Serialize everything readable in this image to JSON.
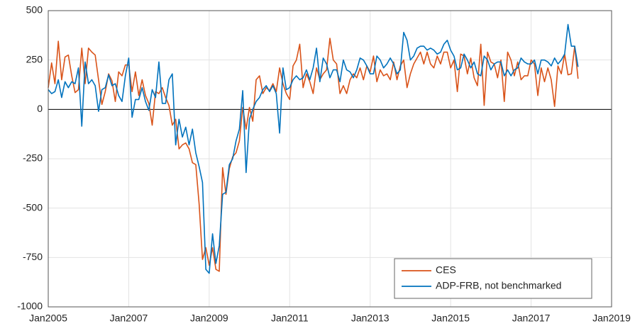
{
  "chart_data": {
    "type": "line",
    "x": [
      "2005-01",
      "2005-02",
      "2005-03",
      "2005-04",
      "2005-05",
      "2005-06",
      "2005-07",
      "2005-08",
      "2005-09",
      "2005-10",
      "2005-11",
      "2005-12",
      "2006-01",
      "2006-02",
      "2006-03",
      "2006-04",
      "2006-05",
      "2006-06",
      "2006-07",
      "2006-08",
      "2006-09",
      "2006-10",
      "2006-11",
      "2006-12",
      "2007-01",
      "2007-02",
      "2007-03",
      "2007-04",
      "2007-05",
      "2007-06",
      "2007-07",
      "2007-08",
      "2007-09",
      "2007-10",
      "2007-11",
      "2007-12",
      "2008-01",
      "2008-02",
      "2008-03",
      "2008-04",
      "2008-05",
      "2008-06",
      "2008-07",
      "2008-08",
      "2008-09",
      "2008-10",
      "2008-11",
      "2008-12",
      "2009-01",
      "2009-02",
      "2009-03",
      "2009-04",
      "2009-05",
      "2009-06",
      "2009-07",
      "2009-08",
      "2009-09",
      "2009-10",
      "2009-11",
      "2009-12",
      "2010-01",
      "2010-02",
      "2010-03",
      "2010-04",
      "2010-05",
      "2010-06",
      "2010-07",
      "2010-08",
      "2010-09",
      "2010-10",
      "2010-11",
      "2010-12",
      "2011-01",
      "2011-02",
      "2011-03",
      "2011-04",
      "2011-05",
      "2011-06",
      "2011-07",
      "2011-08",
      "2011-09",
      "2011-10",
      "2011-11",
      "2011-12",
      "2012-01",
      "2012-02",
      "2012-03",
      "2012-04",
      "2012-05",
      "2012-06",
      "2012-07",
      "2012-08",
      "2012-09",
      "2012-10",
      "2012-11",
      "2012-12",
      "2013-01",
      "2013-02",
      "2013-03",
      "2013-04",
      "2013-05",
      "2013-06",
      "2013-07",
      "2013-08",
      "2013-09",
      "2013-10",
      "2013-11",
      "2013-12",
      "2014-01",
      "2014-02",
      "2014-03",
      "2014-04",
      "2014-05",
      "2014-06",
      "2014-07",
      "2014-08",
      "2014-09",
      "2014-10",
      "2014-11",
      "2014-12",
      "2015-01",
      "2015-02",
      "2015-03",
      "2015-04",
      "2015-05",
      "2015-06",
      "2015-07",
      "2015-08",
      "2015-09",
      "2015-10",
      "2015-11",
      "2015-12",
      "2016-01",
      "2016-02",
      "2016-03",
      "2016-04",
      "2016-05",
      "2016-06",
      "2016-07",
      "2016-08",
      "2016-09",
      "2016-10",
      "2016-11",
      "2016-12",
      "2017-01",
      "2017-02",
      "2017-03",
      "2017-04",
      "2017-05",
      "2017-06",
      "2017-07",
      "2017-08",
      "2017-09",
      "2017-10",
      "2017-11",
      "2017-12",
      "2018-01",
      "2018-02",
      "2018-03"
    ],
    "series": [
      {
        "name": "CES",
        "color": "#d95319",
        "values": [
          110,
          235,
          130,
          345,
          150,
          265,
          275,
          170,
          85,
          100,
          310,
          130,
          310,
          290,
          275,
          150,
          25,
          90,
          180,
          145,
          40,
          190,
          170,
          225,
          225,
          90,
          190,
          70,
          150,
          70,
          30,
          -80,
          90,
          80,
          110,
          60,
          20,
          -80,
          -50,
          -200,
          -180,
          -170,
          -200,
          -270,
          -280,
          -480,
          -760,
          -700,
          -790,
          -700,
          -810,
          -820,
          -295,
          -430,
          -300,
          -240,
          -220,
          -160,
          10,
          -100,
          10,
          -60,
          150,
          170,
          80,
          110,
          95,
          130,
          90,
          210,
          130,
          80,
          50,
          220,
          250,
          330,
          110,
          180,
          140,
          80,
          210,
          150,
          180,
          200,
          360,
          250,
          230,
          80,
          120,
          80,
          150,
          180,
          160,
          210,
          150,
          220,
          190,
          270,
          140,
          200,
          170,
          180,
          150,
          240,
          150,
          220,
          250,
          110,
          180,
          230,
          260,
          290,
          230,
          290,
          230,
          210,
          270,
          230,
          290,
          290,
          210,
          250,
          90,
          280,
          270,
          180,
          260,
          160,
          120,
          330,
          20,
          290,
          240,
          230,
          160,
          250,
          40,
          290,
          250,
          170,
          240,
          150,
          170,
          170,
          250,
          230,
          70,
          210,
          140,
          210,
          150,
          15,
          220,
          180,
          280,
          175,
          180,
          320,
          155
        ]
      },
      {
        "name": "ADP-FRB, not benchmarked",
        "color": "#0072bd",
        "values": [
          100,
          80,
          90,
          150,
          60,
          140,
          110,
          140,
          130,
          210,
          -85,
          240,
          130,
          150,
          120,
          -10,
          100,
          110,
          175,
          120,
          130,
          70,
          40,
          170,
          260,
          -40,
          50,
          50,
          110,
          40,
          -5,
          100,
          60,
          240,
          30,
          30,
          150,
          180,
          -180,
          -50,
          -140,
          -90,
          -180,
          -100,
          -220,
          -290,
          -370,
          -810,
          -830,
          -630,
          -780,
          -690,
          -430,
          -420,
          -280,
          -250,
          -160,
          -100,
          95,
          -320,
          -50,
          0,
          40,
          60,
          100,
          120,
          90,
          120,
          80,
          -120,
          210,
          100,
          110,
          150,
          170,
          150,
          160,
          200,
          150,
          210,
          310,
          140,
          260,
          230,
          160,
          200,
          200,
          140,
          250,
          200,
          190,
          160,
          200,
          260,
          250,
          220,
          180,
          180,
          270,
          250,
          210,
          230,
          260,
          230,
          180,
          200,
          390,
          350,
          250,
          270,
          310,
          320,
          320,
          300,
          310,
          300,
          280,
          290,
          330,
          350,
          300,
          270,
          200,
          210,
          280,
          250,
          210,
          240,
          180,
          170,
          270,
          250,
          200,
          230,
          240,
          240,
          170,
          200,
          170,
          200,
          210,
          260,
          240,
          230,
          230,
          250,
          180,
          250,
          250,
          240,
          220,
          260,
          230,
          250,
          280,
          430,
          320,
          320,
          215
        ]
      }
    ],
    "xlim": [
      "2005-01",
      "2019-01"
    ],
    "xticks": [
      {
        "value": "2005-01",
        "label": "Jan2005"
      },
      {
        "value": "2007-01",
        "label": "Jan2007"
      },
      {
        "value": "2009-01",
        "label": "Jan2009"
      },
      {
        "value": "2011-01",
        "label": "Jan2011"
      },
      {
        "value": "2013-01",
        "label": "Jan2013"
      },
      {
        "value": "2015-01",
        "label": "Jan2015"
      },
      {
        "value": "2017-01",
        "label": "Jan2017"
      },
      {
        "value": "2019-01",
        "label": "Jan2019"
      }
    ],
    "ylim": [
      -1000,
      500
    ],
    "yticks": [
      -1000,
      -750,
      -500,
      -250,
      0,
      250,
      500
    ],
    "grid": true,
    "legend": "lower right"
  }
}
